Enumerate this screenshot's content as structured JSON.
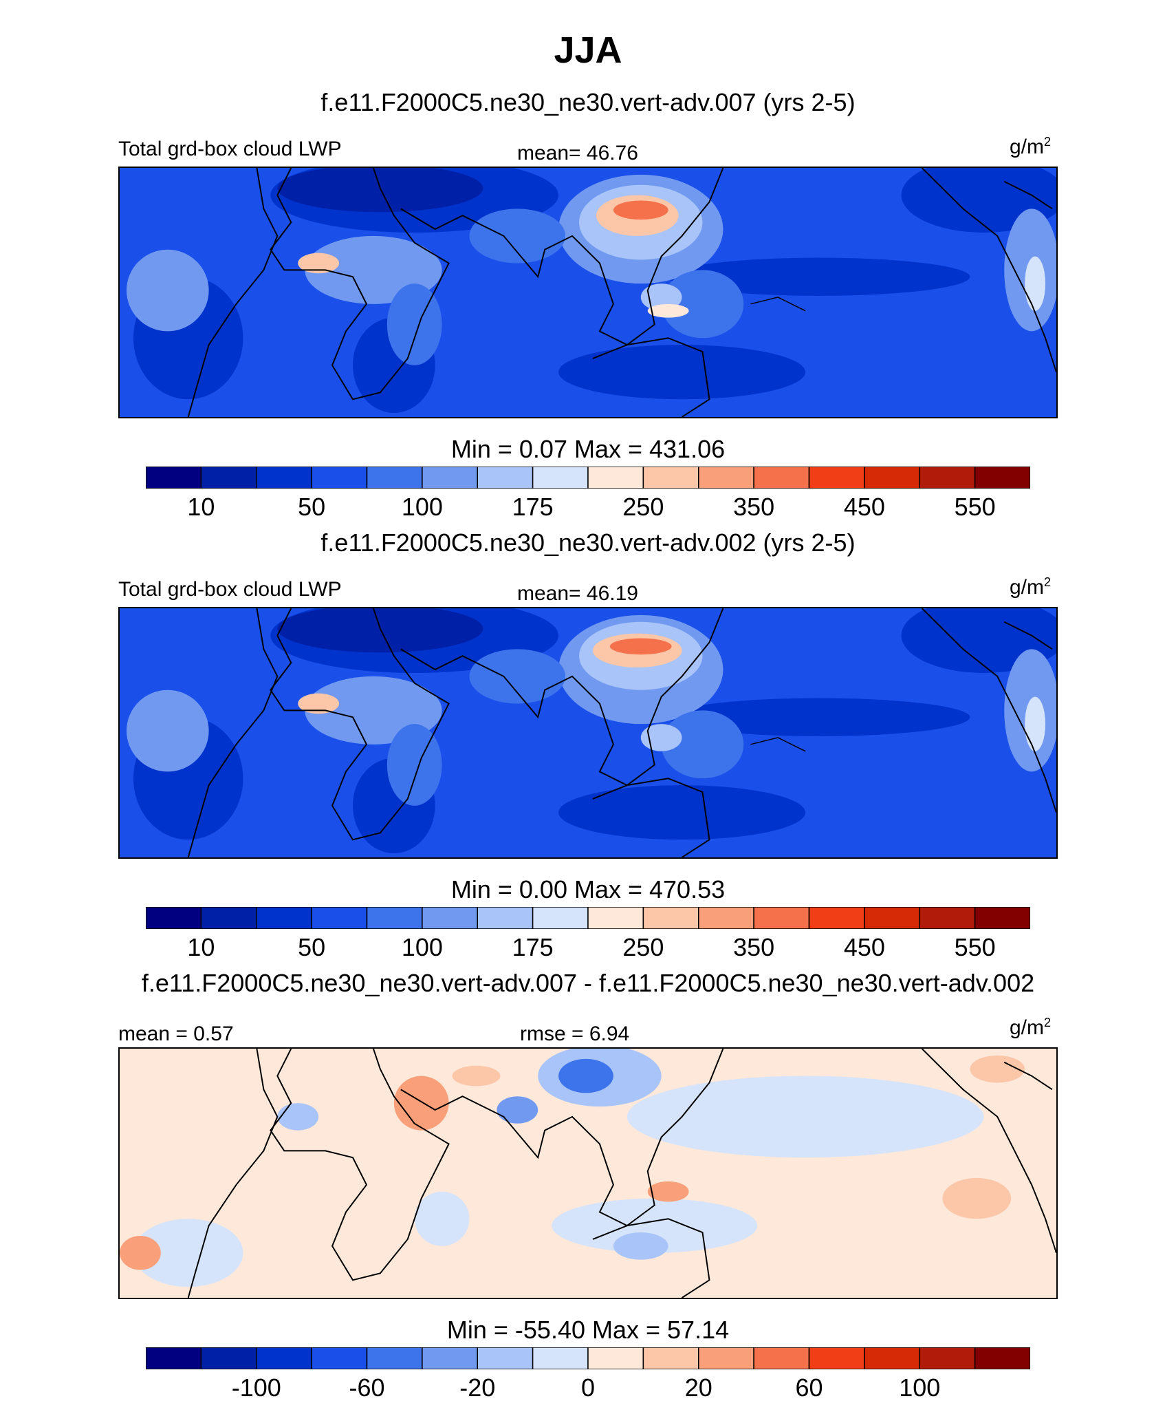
{
  "title": "JJA",
  "units": {
    "base": "g/m",
    "exp": "2"
  },
  "colormap": [
    "#000080",
    "#0020A8",
    "#0033CC",
    "#1A4FEA",
    "#3D73EB",
    "#7199F0",
    "#A8C4F8",
    "#D6E4FB",
    "#FDE8DA",
    "#FCC7A9",
    "#F9A07A",
    "#F5714C",
    "#F23E17",
    "#D52A05",
    "#B11B0A",
    "#820000"
  ],
  "panels": [
    {
      "case": "f.e11.F2000C5.ne30_ne30.vert-adv.007 (yrs 2-5)",
      "left_label": "Total grd-box cloud LWP",
      "center_label": "mean=  46.76",
      "minmax": "Min =    0.07 Max = 431.06",
      "ticks": [
        "10",
        "50",
        "100",
        "175",
        "250",
        "350",
        "450",
        "550"
      ]
    },
    {
      "case": "f.e11.F2000C5.ne30_ne30.vert-adv.002 (yrs 2-5)",
      "left_label": "Total grd-box cloud LWP",
      "center_label": "mean=  46.19",
      "minmax": "Min =    0.00 Max = 470.53",
      "ticks": [
        "10",
        "50",
        "100",
        "175",
        "250",
        "350",
        "450",
        "550"
      ]
    },
    {
      "case": "f.e11.F2000C5.ne30_ne30.vert-adv.007 - f.e11.F2000C5.ne30_ne30.vert-adv.002",
      "left_label": "mean =   0.57",
      "center_label": "rmse =   6.94",
      "minmax": "Min = -55.40 Max =  57.14",
      "ticks": [
        "-100",
        "-60",
        "-20",
        "0",
        "20",
        "60",
        "100"
      ]
    }
  ]
}
